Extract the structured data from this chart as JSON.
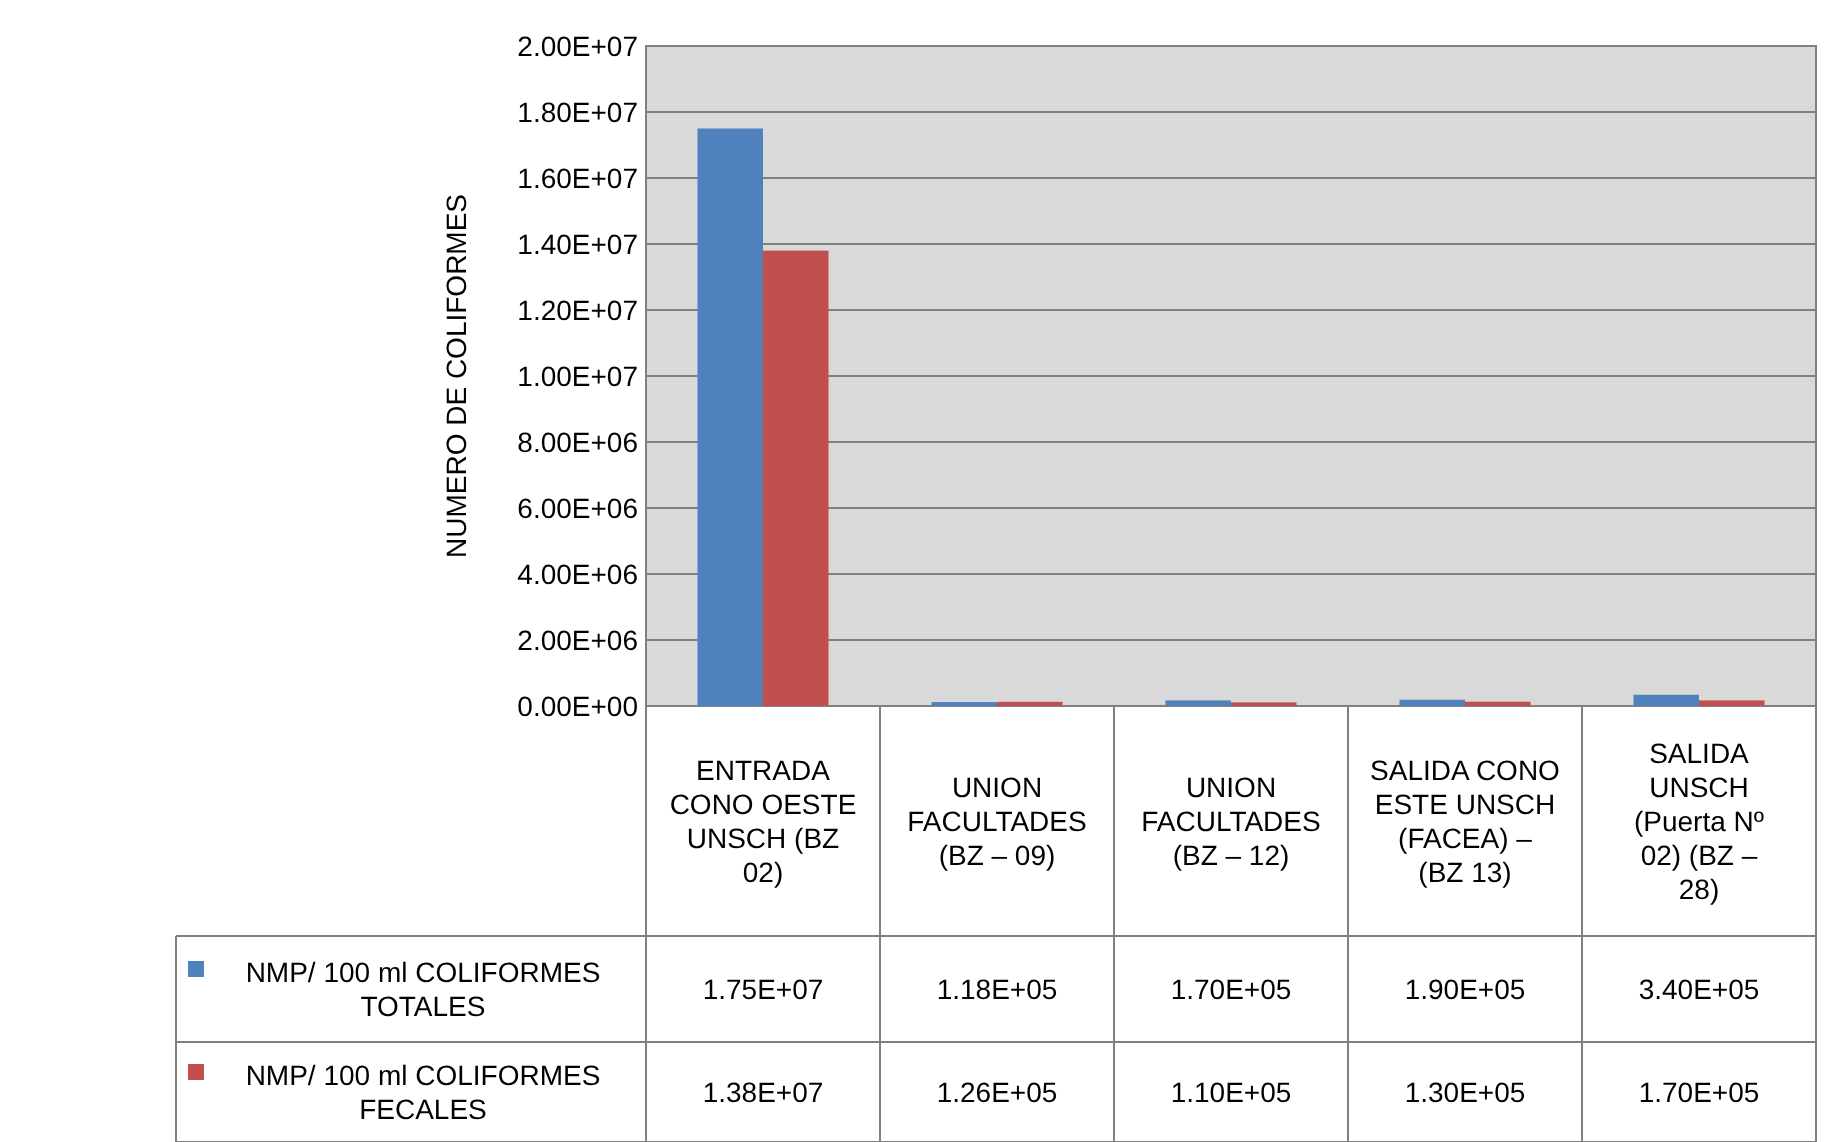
{
  "chart_data": {
    "type": "bar",
    "ylabel": "NUMERO DE  COLIFORMES",
    "categories": [
      "ENTRADA CONO OESTE UNSCH (BZ 02)",
      "UNION FACULTADES (BZ – 09)",
      "UNION FACULTADES (BZ – 12)",
      "SALIDA CONO  ESTE UNSCH (FACEA) – (BZ 13)",
      "SALIDA UNSCH (Puerta Nº 02) (BZ – 28)"
    ],
    "series": [
      {
        "name": "NMP/ 100 ml COLIFORMES TOTALES",
        "color": "#4f81bd",
        "values": [
          17500000,
          118000,
          170000,
          190000,
          340000
        ],
        "value_labels": [
          "1.75E+07",
          "1.18E+05",
          "1.70E+05",
          "1.90E+05",
          "3.40E+05"
        ]
      },
      {
        "name": "NMP/ 100 ml COLIFORMES FECALES",
        "color": "#c0504d",
        "values": [
          13800000,
          126000,
          110000,
          130000,
          170000
        ],
        "value_labels": [
          "1.38E+07",
          "1.26E+05",
          "1.10E+05",
          "1.30E+05",
          "1.70E+05"
        ]
      }
    ],
    "ylim": [
      0,
      20000000
    ],
    "yticks": [
      {
        "value": 0,
        "label": "0.00E+00"
      },
      {
        "value": 2000000,
        "label": "2.00E+06"
      },
      {
        "value": 4000000,
        "label": "4.00E+06"
      },
      {
        "value": 6000000,
        "label": "6.00E+06"
      },
      {
        "value": 8000000,
        "label": "8.00E+06"
      },
      {
        "value": 10000000,
        "label": "1.00E+07"
      },
      {
        "value": 12000000,
        "label": "1.20E+07"
      },
      {
        "value": 14000000,
        "label": "1.40E+07"
      },
      {
        "value": 16000000,
        "label": "1.60E+07"
      },
      {
        "value": 18000000,
        "label": "1.80E+07"
      },
      {
        "value": 20000000,
        "label": "2.00E+07"
      }
    ],
    "grid": "y",
    "legend": "bottom"
  }
}
